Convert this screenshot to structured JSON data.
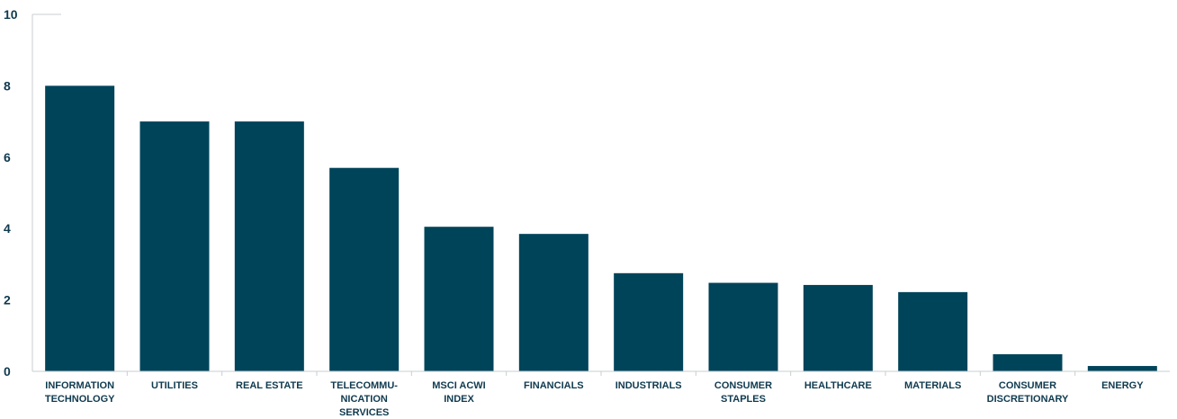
{
  "chart_data": {
    "type": "bar",
    "categories": [
      [
        "INFORMATION",
        "TECHNOLOGY"
      ],
      [
        "UTILITIES"
      ],
      [
        "REAL ESTATE"
      ],
      [
        "TELECOMMU-",
        "NICATION",
        "SERVICES"
      ],
      [
        "MSCI ACWI",
        "INDEX"
      ],
      [
        "FINANCIALS"
      ],
      [
        "INDUSTRIALS"
      ],
      [
        "CONSUMER",
        "STAPLES"
      ],
      [
        "HEALTHCARE"
      ],
      [
        "MATERIALS"
      ],
      [
        "CONSUMER",
        "DISCRETIONARY"
      ],
      [
        "ENERGY"
      ]
    ],
    "values": [
      8.0,
      7.0,
      7.0,
      5.7,
      4.05,
      3.85,
      2.75,
      2.48,
      2.42,
      2.22,
      0.48,
      0.15
    ],
    "ylim": [
      0,
      10
    ],
    "yticks": [
      "0",
      "2",
      "4",
      "6",
      "8",
      "10"
    ],
    "title": "",
    "xlabel": "",
    "ylabel": "",
    "grid": false,
    "colors": {
      "bar": "#00445a",
      "axis": "#c9cdd0",
      "text": "#0f3a4f"
    }
  }
}
